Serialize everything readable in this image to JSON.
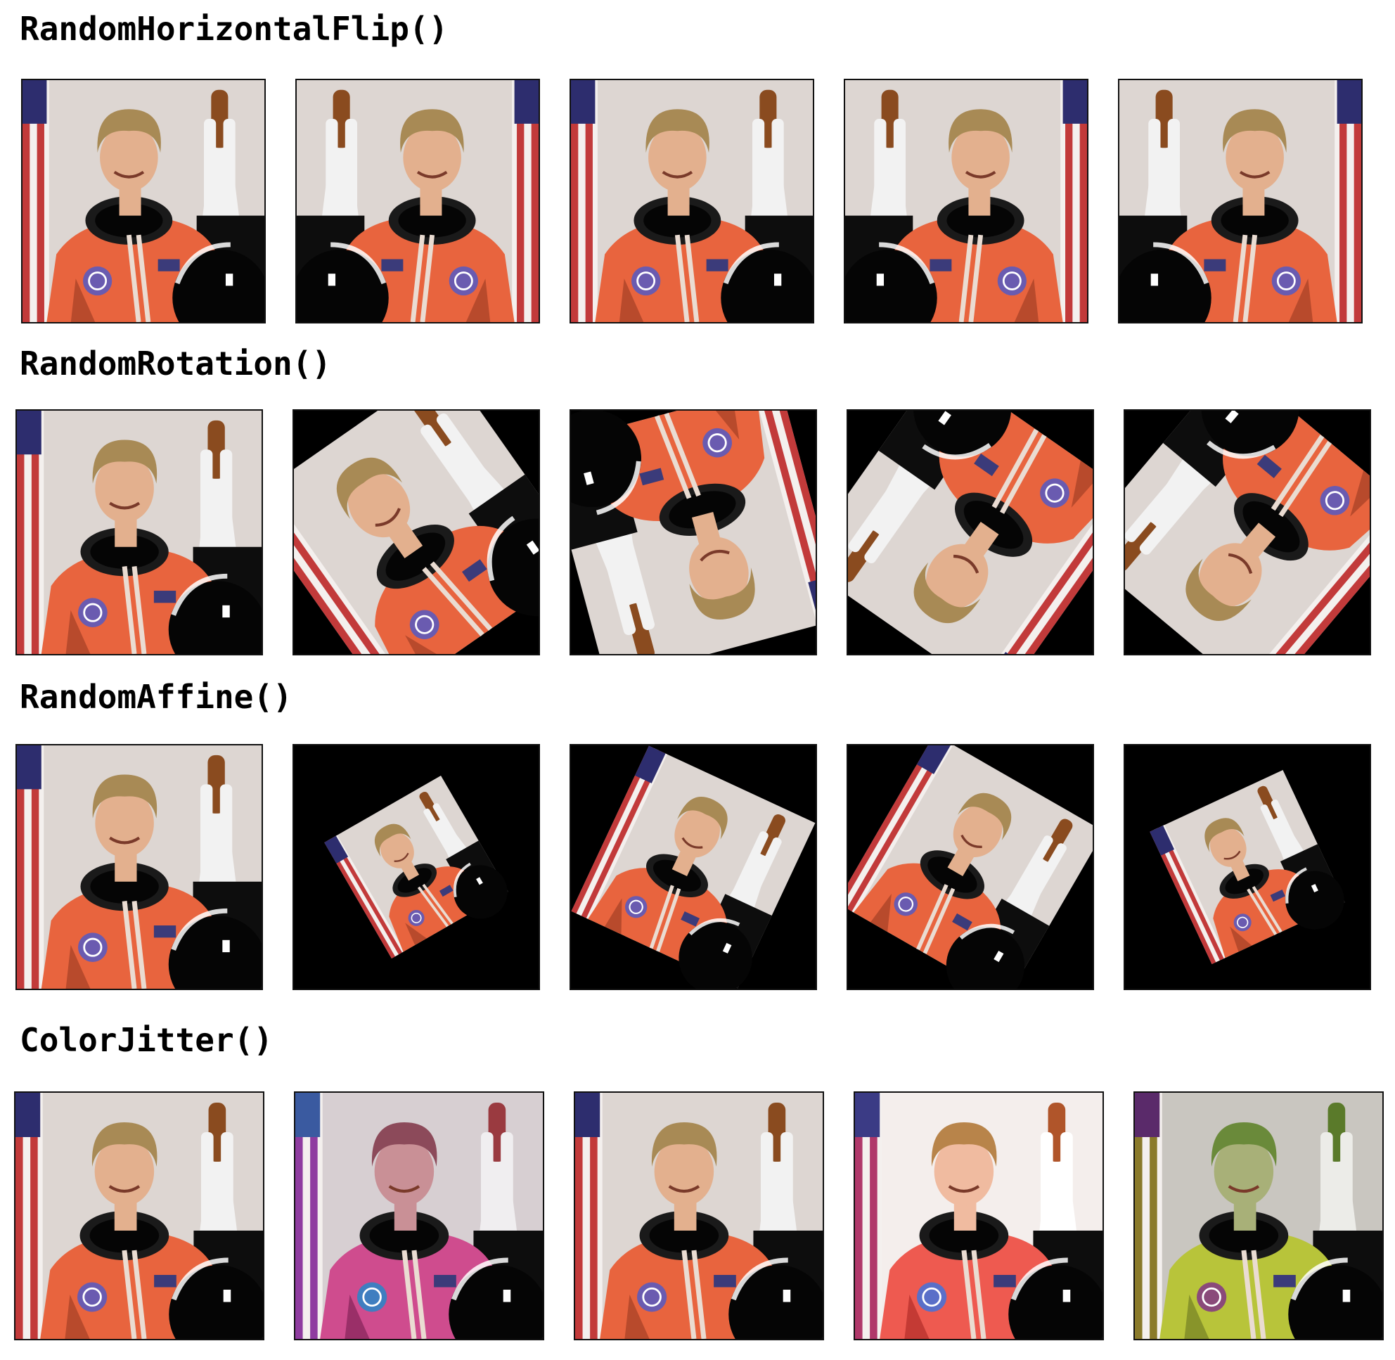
{
  "sections": [
    {
      "title": "RandomHorizontalFlip()",
      "tiles": [
        {
          "variant": "normal",
          "rotation_deg": 0,
          "mirrored": false,
          "scale": 1.0
        },
        {
          "variant": "normal",
          "rotation_deg": 0,
          "mirrored": true,
          "scale": 1.0
        },
        {
          "variant": "normal",
          "rotation_deg": 0,
          "mirrored": false,
          "scale": 1.0
        },
        {
          "variant": "normal",
          "rotation_deg": 0,
          "mirrored": true,
          "scale": 1.0
        },
        {
          "variant": "normal",
          "rotation_deg": 0,
          "mirrored": true,
          "scale": 1.0
        }
      ]
    },
    {
      "title": "RandomRotation()",
      "tiles": [
        {
          "variant": "normal",
          "rotation_deg": 0,
          "mirrored": false,
          "scale": 1.0
        },
        {
          "variant": "normal",
          "rotation_deg": -35,
          "mirrored": false,
          "scale": 1.0
        },
        {
          "variant": "normal",
          "rotation_deg": 165,
          "mirrored": false,
          "scale": 1.0
        },
        {
          "variant": "normal",
          "rotation_deg": -145,
          "mirrored": false,
          "scale": 1.0
        },
        {
          "variant": "normal",
          "rotation_deg": -140,
          "mirrored": false,
          "scale": 1.0
        }
      ]
    },
    {
      "title": "RandomAffine()",
      "tiles": [
        {
          "variant": "normal",
          "rotation_deg": 0,
          "mirrored": false,
          "scale": 1.0
        },
        {
          "variant": "normal",
          "rotation_deg": -30,
          "mirrored": false,
          "scale": 0.55
        },
        {
          "variant": "normal",
          "rotation_deg": 25,
          "mirrored": false,
          "scale": 0.75
        },
        {
          "variant": "normal",
          "rotation_deg": 30,
          "mirrored": false,
          "scale": 0.8
        },
        {
          "variant": "normal",
          "rotation_deg": -25,
          "mirrored": false,
          "scale": 0.6
        }
      ]
    },
    {
      "title": "ColorJitter()",
      "tiles": [
        {
          "variant": "normal",
          "rotation_deg": 0,
          "mirrored": false,
          "scale": 1.0
        },
        {
          "variant": "pink",
          "rotation_deg": 0,
          "mirrored": false,
          "scale": 1.0
        },
        {
          "variant": "normal",
          "rotation_deg": 0,
          "mirrored": false,
          "scale": 1.0
        },
        {
          "variant": "bright",
          "rotation_deg": 0,
          "mirrored": false,
          "scale": 1.0
        },
        {
          "variant": "green",
          "rotation_deg": 0,
          "mirrored": false,
          "scale": 1.0
        }
      ]
    }
  ],
  "palettes": {
    "normal": {
      "bg": "#ddd6d2",
      "suit": "#e8643e",
      "suit_shadow": "#b84a2c",
      "hair": "#a88a55",
      "skin": "#e3b08e",
      "shuttle": "#f2f2f2",
      "tank": "#8a4b1f",
      "badge": "#6a5bb0",
      "stripe": "#c23a3a",
      "canton": "#2d2d6e"
    },
    "pink": {
      "bg": "#d7cfd2",
      "suit": "#cf4c8e",
      "suit_shadow": "#9a2f68",
      "hair": "#8c4a5a",
      "skin": "#c99096",
      "shuttle": "#f0eef0",
      "tank": "#9a3a40",
      "badge": "#3f7ec0",
      "stripe": "#8f3ca0",
      "canton": "#3a5aa0"
    },
    "bright": {
      "bg": "#f4eeec",
      "suit": "#ee5a50",
      "suit_shadow": "#c43a34",
      "hair": "#b8844a",
      "skin": "#f0bba0",
      "shuttle": "#ffffff",
      "tank": "#b0552a",
      "badge": "#5a6fc8",
      "stripe": "#b0386a",
      "canton": "#3b3b85"
    },
    "green": {
      "bg": "#c9c6c0",
      "suit": "#b8c43a",
      "suit_shadow": "#88942a",
      "hair": "#6a8a3a",
      "skin": "#a8b078",
      "shuttle": "#ecece8",
      "tank": "#5a7a2a",
      "badge": "#8a4a7a",
      "stripe": "#8a7a2a",
      "canton": "#5a2a6a"
    }
  }
}
